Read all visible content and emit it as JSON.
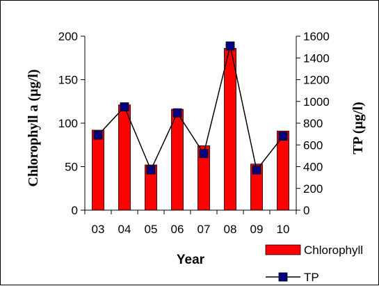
{
  "chart_data": {
    "type": "bar",
    "categories": [
      "03",
      "04",
      "05",
      "06",
      "07",
      "08",
      "09",
      "10"
    ],
    "series": [
      {
        "name": "Chlorophyll",
        "type": "bar",
        "axis": "left",
        "color": "#ff0000",
        "values": [
          92,
          121,
          52,
          116,
          74,
          186,
          53,
          91
        ]
      },
      {
        "name": "TP",
        "type": "line",
        "axis": "right",
        "color": "#000080",
        "values": [
          690,
          950,
          370,
          895,
          520,
          1510,
          370,
          680
        ]
      }
    ],
    "xlabel": "Year",
    "ylabel": "Chlorophyll a (µg/l)",
    "ylabel_right": "TP (µg/l)",
    "ylim": [
      0,
      200
    ],
    "yticks": [
      "0",
      "50",
      "100",
      "150",
      "200"
    ],
    "ylim_right": [
      0,
      1600
    ],
    "yticks_right": [
      "0",
      "200",
      "400",
      "600",
      "800",
      "1000",
      "1200",
      "1400",
      "1600"
    ],
    "legend_position": "bottom-right",
    "grid": false
  }
}
